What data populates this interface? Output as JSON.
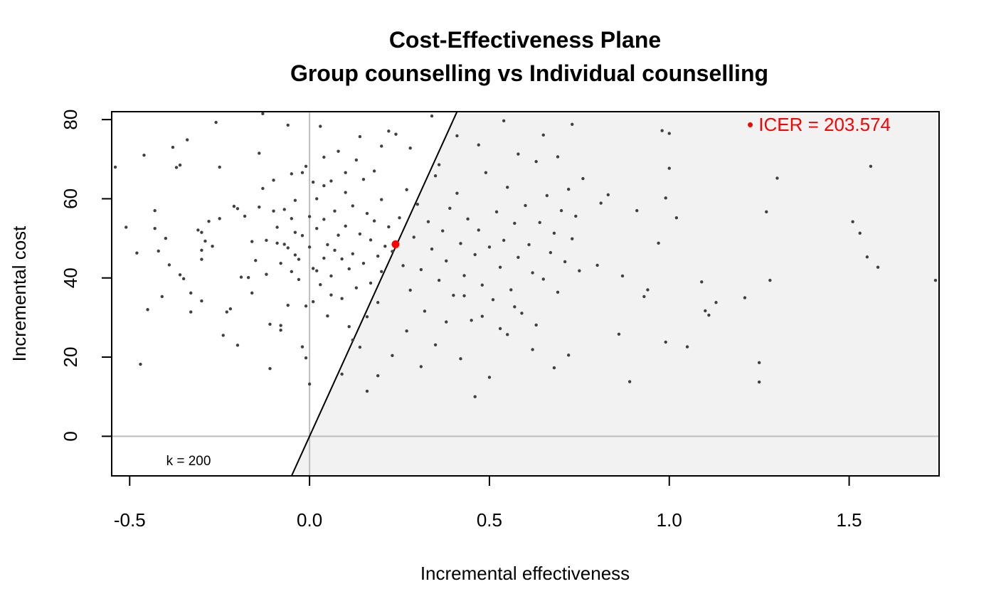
{
  "chart_data": {
    "type": "scatter",
    "title": "Cost-Effectiveness Plane",
    "subtitle": "Group counselling vs Individual counselling",
    "xlabel": "Incremental effectiveness",
    "ylabel": "Incremental cost",
    "xlim": [
      -0.55,
      1.75
    ],
    "ylim": [
      -10,
      82
    ],
    "x_ticks": [
      -0.5,
      0.0,
      0.5,
      1.0,
      1.5
    ],
    "x_tick_labels": [
      "-0.5",
      "0.0",
      "0.5",
      "1.0",
      "1.5"
    ],
    "y_ticks": [
      0,
      20,
      40,
      60,
      80
    ],
    "y_tick_labels": [
      "0",
      "20",
      "40",
      "60",
      "80"
    ],
    "wtp_k": 200,
    "k_label": "k = 200",
    "reference_lines": {
      "x": 0,
      "y": 0
    },
    "icer": {
      "x": 0.239,
      "y": 48.5,
      "label": "• ICER = 203.574",
      "color": "#ff0000"
    },
    "acceptance_region_color": "#f2f2f2",
    "point_color": "#404040",
    "points": [
      [
        -0.54,
        68
      ],
      [
        -0.51,
        52.8
      ],
      [
        -0.48,
        46.3
      ],
      [
        -0.47,
        18.2
      ],
      [
        -0.46,
        71
      ],
      [
        -0.45,
        32
      ],
      [
        -0.43,
        57
      ],
      [
        -0.43,
        52.5
      ],
      [
        -0.42,
        46.8
      ],
      [
        -0.41,
        35.3
      ],
      [
        -0.4,
        50
      ],
      [
        -0.39,
        43.3
      ],
      [
        -0.38,
        73
      ],
      [
        -0.37,
        67.9
      ],
      [
        -0.36,
        68.5
      ],
      [
        -0.36,
        40.8
      ],
      [
        -0.35,
        39.8
      ],
      [
        -0.34,
        74.9
      ],
      [
        -0.33,
        36.2
      ],
      [
        -0.33,
        31.4
      ],
      [
        -0.31,
        52.1
      ],
      [
        -0.3,
        51.5
      ],
      [
        -0.3,
        47
      ],
      [
        -0.3,
        44.7
      ],
      [
        -0.3,
        34.2
      ],
      [
        -0.29,
        49.3
      ],
      [
        -0.28,
        54.3
      ],
      [
        -0.27,
        48
      ],
      [
        -0.26,
        79.3
      ],
      [
        -0.25,
        68
      ],
      [
        -0.25,
        55
      ],
      [
        -0.24,
        25.5
      ],
      [
        -0.23,
        31.4
      ],
      [
        -0.22,
        32.2
      ],
      [
        -0.21,
        58.1
      ],
      [
        -0.2,
        57.5
      ],
      [
        -0.2,
        23
      ],
      [
        -0.19,
        40.2
      ],
      [
        -0.18,
        55.6
      ],
      [
        -0.17,
        40.1
      ],
      [
        -0.16,
        49.2
      ],
      [
        -0.16,
        36.2
      ],
      [
        -0.15,
        44.4
      ],
      [
        -0.14,
        71.5
      ],
      [
        -0.14,
        57.9
      ],
      [
        -0.13,
        81.5
      ],
      [
        -0.13,
        62.6
      ],
      [
        -0.12,
        49.5
      ],
      [
        -0.12,
        40.9
      ],
      [
        -0.11,
        28.3
      ],
      [
        -0.11,
        17.1
      ],
      [
        -0.1,
        64.7
      ],
      [
        -0.1,
        56.9
      ],
      [
        -0.09,
        52.8
      ],
      [
        -0.09,
        48.8
      ],
      [
        -0.08,
        43.7
      ],
      [
        -0.08,
        26.8
      ],
      [
        -0.08,
        28
      ],
      [
        -0.07,
        48.5
      ],
      [
        -0.07,
        57.3
      ],
      [
        -0.06,
        33.1
      ],
      [
        -0.06,
        47.6
      ],
      [
        -0.05,
        41.6
      ],
      [
        -0.05,
        66.3
      ],
      [
        -0.05,
        55
      ],
      [
        -0.04,
        59.6
      ],
      [
        -0.04,
        51.5
      ],
      [
        -0.04,
        45.8
      ],
      [
        -0.03,
        39.6
      ],
      [
        -0.03,
        44.7
      ],
      [
        -0.02,
        50.7
      ],
      [
        -0.02,
        66.6
      ],
      [
        -0.01,
        68.2
      ],
      [
        -0.01,
        32.9
      ],
      [
        0,
        55.5
      ],
      [
        0,
        47.8
      ],
      [
        0.01,
        42.4
      ],
      [
        0.01,
        34
      ],
      [
        0.02,
        60
      ],
      [
        0.02,
        52.5
      ],
      [
        0.02,
        41.8
      ],
      [
        0.03,
        78.3
      ],
      [
        0.03,
        38.3
      ],
      [
        0.04,
        63.3
      ],
      [
        0.04,
        54.8
      ],
      [
        0.04,
        45
      ],
      [
        0.05,
        48.4
      ],
      [
        0.05,
        30.4
      ],
      [
        0.06,
        64.5
      ],
      [
        0.06,
        35.7
      ],
      [
        0.06,
        40.5
      ],
      [
        0.07,
        56.9
      ],
      [
        0.07,
        47
      ],
      [
        0.08,
        72
      ],
      [
        0.08,
        50.8
      ],
      [
        0.09,
        44.8
      ],
      [
        0.09,
        34.8
      ],
      [
        0.1,
        61.6
      ],
      [
        0.1,
        53.1
      ],
      [
        0.11,
        42.3
      ],
      [
        0.11,
        27.7
      ],
      [
        0.12,
        58.2
      ],
      [
        0.12,
        46.1
      ],
      [
        0.13,
        69.8
      ],
      [
        0.13,
        37.5
      ],
      [
        0.14,
        51.1
      ],
      [
        0.14,
        22.5
      ],
      [
        0.15,
        64.9
      ],
      [
        0.15,
        43.7
      ],
      [
        0.16,
        56.3
      ],
      [
        0.16,
        30.2
      ],
      [
        0.17,
        49.6
      ],
      [
        0.17,
        38.7
      ],
      [
        0.18,
        67
      ],
      [
        0.18,
        54.4
      ],
      [
        0.19,
        45.5
      ],
      [
        0.19,
        33.8
      ],
      [
        0.2,
        59.8
      ],
      [
        0.2,
        41.6
      ],
      [
        0.21,
        48
      ],
      [
        0.22,
        52.9
      ],
      [
        0.23,
        46.7
      ],
      [
        0.25,
        55.2
      ],
      [
        0.26,
        43.1
      ],
      [
        0.27,
        62.3
      ],
      [
        0.28,
        36.9
      ],
      [
        0.29,
        50.3
      ],
      [
        0.3,
        58.6
      ],
      [
        0.31,
        42.1
      ],
      [
        0.32,
        31.6
      ],
      [
        0.33,
        54.2
      ],
      [
        0.34,
        47.3
      ],
      [
        0.35,
        65.8
      ],
      [
        0.36,
        39.4
      ],
      [
        0.37,
        51.9
      ],
      [
        0.38,
        44.3
      ],
      [
        0.39,
        57.6
      ],
      [
        0.4,
        35.6
      ],
      [
        0.41,
        61.4
      ],
      [
        0.42,
        48.7
      ],
      [
        0.43,
        40.6
      ],
      [
        0.44,
        54.9
      ],
      [
        0.45,
        29.3
      ],
      [
        0.46,
        45.9
      ],
      [
        0.47,
        52.1
      ],
      [
        0.48,
        38.2
      ],
      [
        0.49,
        66.6
      ],
      [
        0.5,
        47.8
      ],
      [
        0.51,
        34.5
      ],
      [
        0.52,
        56.7
      ],
      [
        0.53,
        42.7
      ],
      [
        0.54,
        49.5
      ],
      [
        0.55,
        62.9
      ],
      [
        0.56,
        37
      ],
      [
        0.57,
        53.8
      ],
      [
        0.58,
        45.2
      ],
      [
        0.59,
        31.1
      ],
      [
        0.6,
        58.3
      ],
      [
        0.61,
        48.4
      ],
      [
        0.62,
        41.3
      ],
      [
        0.63,
        69.4
      ],
      [
        0.64,
        54
      ],
      [
        0.65,
        39.7
      ],
      [
        0.66,
        60.8
      ],
      [
        0.67,
        46.4
      ],
      [
        0.68,
        51.3
      ],
      [
        0.69,
        36.4
      ],
      [
        0.7,
        57
      ],
      [
        0.71,
        44.1
      ],
      [
        0.72,
        62.4
      ],
      [
        0.73,
        49.9
      ],
      [
        0.74,
        55.6
      ],
      [
        0.75,
        41.8
      ],
      [
        0.76,
        65.1
      ],
      [
        0.16,
        11.4
      ],
      [
        0.12,
        24.3
      ],
      [
        0.19,
        15.3
      ],
      [
        0.23,
        20.4
      ],
      [
        0.27,
        26.6
      ],
      [
        0.31,
        17.6
      ],
      [
        0.35,
        23.1
      ],
      [
        0.38,
        28.9
      ],
      [
        0.42,
        19.6
      ],
      [
        0.46,
        10
      ],
      [
        0.5,
        14.9
      ],
      [
        0.55,
        25.7
      ],
      [
        0.62,
        21.9
      ],
      [
        0.68,
        17.3
      ],
      [
        0.72,
        20.5
      ],
      [
        0.43,
        35.5
      ],
      [
        0.48,
        30.3
      ],
      [
        0.53,
        27.2
      ],
      [
        0.57,
        32.7
      ],
      [
        0.63,
        28.1
      ],
      [
        0.34,
        80.9
      ],
      [
        0.41,
        75.9
      ],
      [
        0.47,
        73.6
      ],
      [
        0.54,
        79.7
      ],
      [
        0.58,
        71.3
      ],
      [
        0.65,
        76.1
      ],
      [
        0.69,
        70.6
      ],
      [
        0.73,
        78.8
      ],
      [
        0.28,
        72.8
      ],
      [
        0.36,
        68.6
      ],
      [
        0.24,
        76.3
      ],
      [
        0.8,
        43.2
      ],
      [
        0.81,
        58.9
      ],
      [
        0.83,
        61
      ],
      [
        0.86,
        25.8
      ],
      [
        0.87,
        40.5
      ],
      [
        0.89,
        13.8
      ],
      [
        0.91,
        57
      ],
      [
        0.93,
        35.3
      ],
      [
        0.94,
        37
      ],
      [
        0.97,
        48.8
      ],
      [
        0.98,
        77.2
      ],
      [
        0.99,
        60.2
      ],
      [
        0.99,
        23.8
      ],
      [
        1,
        76.5
      ],
      [
        1,
        67.7
      ],
      [
        1.02,
        55.2
      ],
      [
        1.05,
        22.6
      ],
      [
        1.09,
        39
      ],
      [
        1.1,
        31.7
      ],
      [
        1.11,
        30.6
      ],
      [
        1.13,
        33.8
      ],
      [
        1.21,
        35
      ],
      [
        1.25,
        18.6
      ],
      [
        1.25,
        13.7
      ],
      [
        1.27,
        56.7
      ],
      [
        1.28,
        39.4
      ],
      [
        1.3,
        65.2
      ],
      [
        1.51,
        54.2
      ],
      [
        1.53,
        51.3
      ],
      [
        1.55,
        45.3
      ],
      [
        1.56,
        68.2
      ],
      [
        1.58,
        42.7
      ],
      [
        1.74,
        39.4
      ],
      [
        0.0,
        13.2
      ],
      [
        0.09,
        15.7
      ],
      [
        0.01,
        64.2
      ],
      [
        0.04,
        70.5
      ],
      [
        -0.02,
        22.6
      ],
      [
        -0.01,
        19.8
      ],
      [
        -0.06,
        78.6
      ],
      [
        0.1,
        66.6
      ],
      [
        0.14,
        75.7
      ],
      [
        0.2,
        73.3
      ],
      [
        0.22,
        77.1
      ]
    ]
  }
}
